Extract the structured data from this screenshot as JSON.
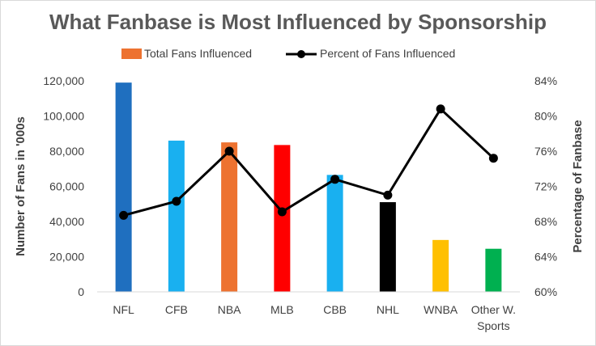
{
  "chart_data": {
    "type": "bar+line",
    "title": "What Fanbase is Most Influenced by Sponsorship",
    "categories": [
      "NFL",
      "CFB",
      "NBA",
      "MLB",
      "CBB",
      "NHL",
      "WNBA",
      [
        "Other W.",
        "Sports"
      ]
    ],
    "series": [
      {
        "name": "Total Fans Influenced",
        "type": "bar",
        "axis": "left",
        "values": [
          119000,
          86000,
          85000,
          83500,
          66500,
          51000,
          29500,
          24500
        ],
        "colors": [
          "#1f6fbf",
          "#19b0f0",
          "#ed7230",
          "#ff0000",
          "#19b0f0",
          "#000000",
          "#ffc000",
          "#00b050"
        ]
      },
      {
        "name": "Percent of Fans Influenced",
        "type": "line",
        "axis": "right",
        "values": [
          68.7,
          70.3,
          76.0,
          69.1,
          72.8,
          71.0,
          80.8,
          75.2
        ],
        "color": "#000000"
      }
    ],
    "ylabel": "Number of Fans in '000s",
    "y2label": "Percentage of Fanbase",
    "ylim": [
      0,
      120000
    ],
    "y2lim": [
      60,
      84
    ],
    "yticks": [
      "0",
      "20,000",
      "40,000",
      "60,000",
      "80,000",
      "100,000",
      "120,000"
    ],
    "y2ticks": [
      "60%",
      "64%",
      "68%",
      "72%",
      "76%",
      "80%",
      "84%"
    ],
    "legend_position": "top",
    "legend_colors": {
      "bar": "#ed7230",
      "line": "#000000"
    },
    "grid": false
  }
}
